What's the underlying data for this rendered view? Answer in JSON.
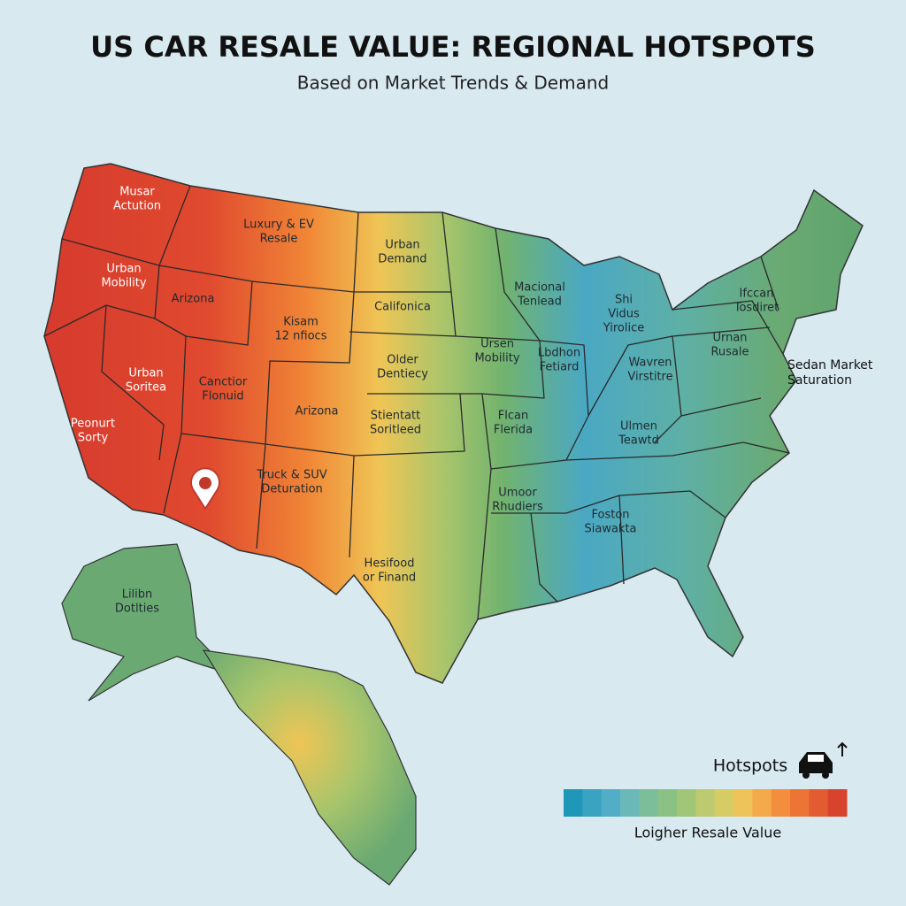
{
  "title": "US CAR RESALE VALUE: REGIONAL HOTSPOTS",
  "subtitle": "Based on Market Trends & Demand",
  "labels": [
    {
      "lines": [
        "Musar",
        "Actution"
      ]
    },
    {
      "lines": [
        "Luxury & EV",
        "Resale"
      ]
    },
    {
      "lines": [
        "Urban",
        "Mobility"
      ]
    },
    {
      "lines": [
        "Arizona"
      ]
    },
    {
      "lines": [
        "Urban",
        "Demand"
      ]
    },
    {
      "lines": [
        "Kisam",
        "12 nfiocs"
      ]
    },
    {
      "lines": [
        "Califonica"
      ]
    },
    {
      "lines": [
        "Urban",
        "Soritea"
      ]
    },
    {
      "lines": [
        "Canctior",
        "Flonuid"
      ]
    },
    {
      "lines": [
        "Arizona"
      ]
    },
    {
      "lines": [
        "Older",
        "Dentiecy"
      ]
    },
    {
      "lines": [
        "Peonurt",
        "Sorty"
      ]
    },
    {
      "lines": [
        "Stientatt",
        "Soritleed"
      ]
    },
    {
      "lines": [
        "Truck & SUV",
        "Deturation"
      ]
    },
    {
      "lines": [
        "Hesifood",
        "or Finand"
      ]
    },
    {
      "lines": [
        "Lilibn",
        "Dotlties"
      ]
    },
    {
      "lines": [
        "Macional",
        "Tenlead"
      ]
    },
    {
      "lines": [
        "Shi",
        "Vidus",
        "Yirolice"
      ]
    },
    {
      "lines": [
        "Ursen",
        "Mobility"
      ]
    },
    {
      "lines": [
        "Lbdhon",
        "Fetiard"
      ]
    },
    {
      "lines": [
        "Wavren",
        "Virstitre"
      ]
    },
    {
      "lines": [
        "Flcan",
        "Flerida"
      ]
    },
    {
      "lines": [
        "Ulmen",
        "Teawtd"
      ]
    },
    {
      "lines": [
        "Umoor",
        "Rhudiers"
      ]
    },
    {
      "lines": [
        "Foston",
        "Siawakta"
      ]
    },
    {
      "lines": [
        "Ifccan",
        "Tosdiret"
      ]
    },
    {
      "lines": [
        "Urnan",
        "Rusale"
      ]
    }
  ],
  "callout": {
    "lines": [
      "Sedan Market",
      "Saturation"
    ]
  },
  "legend": {
    "title": "Hotspots",
    "caption": "Loigher Resale Value",
    "colors": [
      "#1f97b8",
      "#3aa3c2",
      "#52aec6",
      "#6bb8b8",
      "#7cbd9a",
      "#8cc184",
      "#a2c678",
      "#bdca6f",
      "#d6cc66",
      "#eec45a",
      "#f4a94a",
      "#f28e3e",
      "#ec7536",
      "#e25b31",
      "#d8432d"
    ]
  }
}
